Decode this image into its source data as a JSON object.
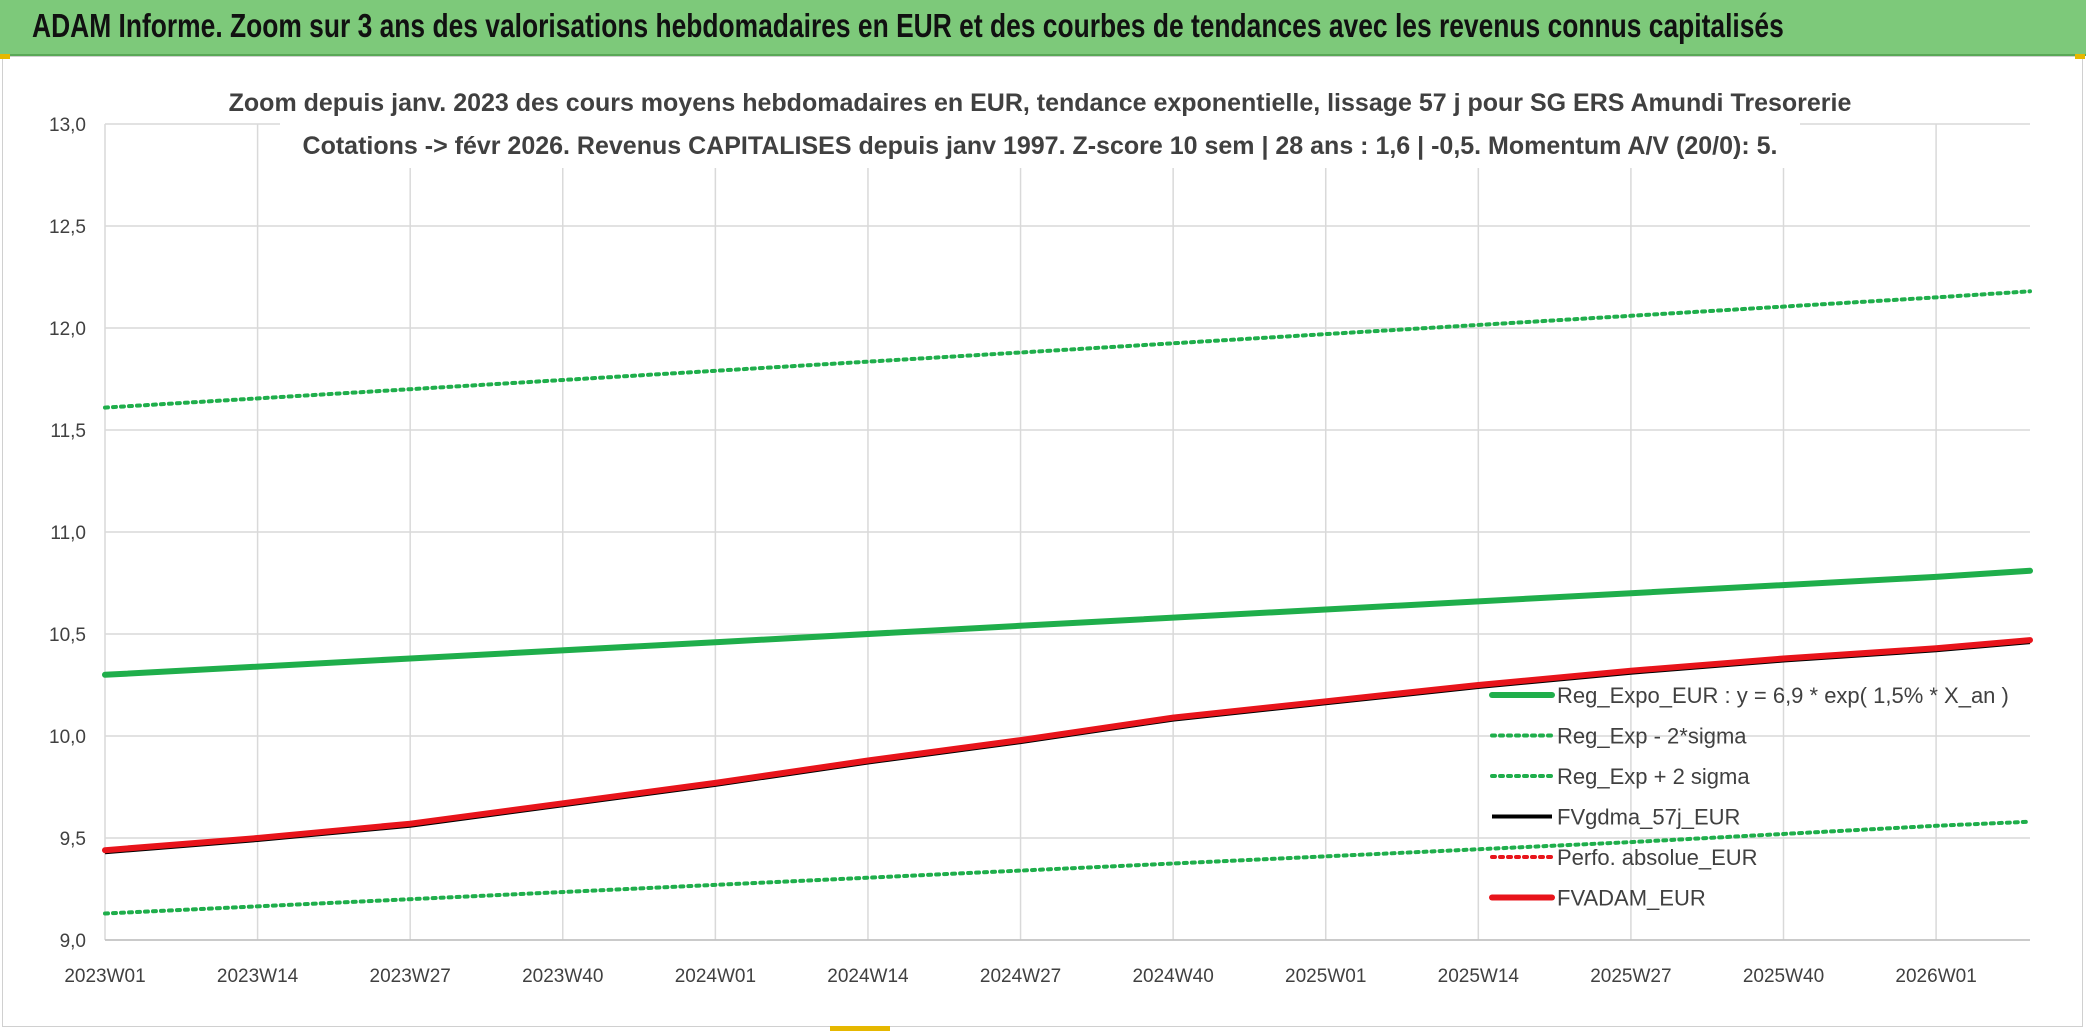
{
  "banner": {
    "title": "ADAM Informe. Zoom sur 3 ans des valorisations hebdomadaires en EUR et des courbes de tendances avec les revenus connus capitalisés"
  },
  "colors": {
    "banner_bg": "#7dc97a",
    "trend_green": "#1fae4b",
    "black_series": "#000000",
    "red_series": "#e8141b",
    "dotted_red": "#e8141b",
    "grid": "#d9d9d9"
  },
  "chart_data": {
    "type": "line",
    "title_lines": [
      "Zoom depuis janv. 2023 des cours moyens hebdomadaires en EUR, tendance exponentielle, lissage 57 j pour SG ERS Amundi Tresorerie",
      "Cotations -> févr 2026. Revenus CAPITALISES depuis janv 1997. Z-score 10 sem | 28 ans : 1,6 | -0,5. Momentum A/V (20/0): 5."
    ],
    "xlabel": "",
    "ylabel": "",
    "ylim": [
      9.0,
      13.0
    ],
    "y_ticks": [
      "9,0",
      "9,5",
      "10,0",
      "10,5",
      "11,0",
      "11,5",
      "12,0",
      "12,5",
      "13,0"
    ],
    "y_tick_values": [
      9.0,
      9.5,
      10.0,
      10.5,
      11.0,
      11.5,
      12.0,
      12.5,
      13.0
    ],
    "x_ticks": [
      "2023W01",
      "2023W14",
      "2023W27",
      "2023W40",
      "2024W01",
      "2024W14",
      "2024W27",
      "2024W40",
      "2025W01",
      "2025W14",
      "2025W27",
      "2025W40",
      "2026W01"
    ],
    "x_tick_weeks": [
      0,
      13,
      26,
      39,
      52,
      65,
      78,
      91,
      104,
      117,
      130,
      143,
      156
    ],
    "x_range_weeks": [
      0,
      164
    ],
    "grid": true,
    "legend_position": "right",
    "series": [
      {
        "name": "Reg_Expo_EUR : y = 6,9 * exp( 1,5% *  X_an )",
        "style": "solid-thick",
        "color": "#1fae4b",
        "x": [
          0,
          26,
          52,
          78,
          104,
          130,
          156,
          164
        ],
        "values": [
          10.3,
          10.38,
          10.46,
          10.54,
          10.62,
          10.7,
          10.78,
          10.81
        ]
      },
      {
        "name": "Reg_Exp - 2*sigma",
        "style": "dotted",
        "color": "#1fae4b",
        "x": [
          0,
          26,
          52,
          78,
          104,
          130,
          156,
          164
        ],
        "values": [
          9.13,
          9.2,
          9.27,
          9.34,
          9.41,
          9.48,
          9.56,
          9.58
        ]
      },
      {
        "name": "Reg_Exp + 2 sigma",
        "style": "dotted",
        "color": "#1fae4b",
        "x": [
          0,
          26,
          52,
          78,
          104,
          130,
          156,
          164
        ],
        "values": [
          11.61,
          11.7,
          11.79,
          11.88,
          11.97,
          12.06,
          12.15,
          12.18
        ]
      },
      {
        "name": "FVgdma_57j_EUR",
        "style": "solid",
        "color": "#000000",
        "x": [
          0,
          13,
          26,
          39,
          52,
          65,
          78,
          91,
          104,
          117,
          130,
          143,
          156,
          164
        ],
        "values": [
          9.44,
          9.5,
          9.57,
          9.67,
          9.77,
          9.88,
          9.98,
          10.09,
          10.17,
          10.25,
          10.32,
          10.38,
          10.43,
          10.47
        ]
      },
      {
        "name": "Perfo. absolue_EUR",
        "style": "dotted",
        "color": "#e8141b",
        "x": [
          0,
          13,
          26,
          39,
          52,
          65,
          78,
          91,
          104,
          117,
          130,
          143,
          156,
          164
        ],
        "values": [
          9.44,
          9.5,
          9.57,
          9.67,
          9.77,
          9.88,
          9.98,
          10.09,
          10.17,
          10.25,
          10.32,
          10.38,
          10.43,
          10.47
        ]
      },
      {
        "name": "FVADAM_EUR",
        "style": "solid-thick",
        "color": "#e8141b",
        "x": [
          0,
          13,
          26,
          39,
          52,
          65,
          78,
          91,
          104,
          117,
          130,
          143,
          156,
          164
        ],
        "values": [
          9.44,
          9.5,
          9.57,
          9.67,
          9.77,
          9.88,
          9.98,
          10.09,
          10.17,
          10.25,
          10.32,
          10.38,
          10.43,
          10.47
        ]
      }
    ]
  }
}
